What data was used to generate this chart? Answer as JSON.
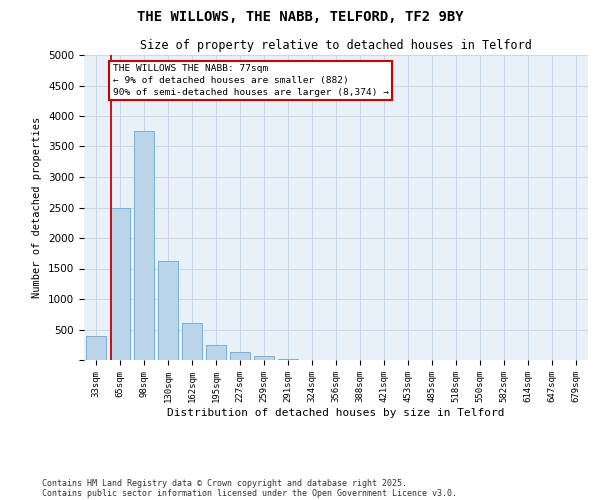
{
  "title1": "THE WILLOWS, THE NABB, TELFORD, TF2 9BY",
  "title2": "Size of property relative to detached houses in Telford",
  "xlabel": "Distribution of detached houses by size in Telford",
  "ylabel": "Number of detached properties",
  "bins": [
    "33sqm",
    "65sqm",
    "98sqm",
    "130sqm",
    "162sqm",
    "195sqm",
    "227sqm",
    "259sqm",
    "291sqm",
    "324sqm",
    "356sqm",
    "388sqm",
    "421sqm",
    "453sqm",
    "485sqm",
    "518sqm",
    "550sqm",
    "582sqm",
    "614sqm",
    "647sqm",
    "679sqm"
  ],
  "values": [
    400,
    2500,
    3750,
    1625,
    600,
    250,
    130,
    60,
    20,
    5,
    2,
    1,
    0,
    0,
    0,
    0,
    0,
    0,
    0,
    0,
    0
  ],
  "bar_color": "#bad4ea",
  "bar_edge_color": "#7bafd4",
  "grid_color": "#c8d8ea",
  "bg_color": "#e8f0f8",
  "annotation_text": "THE WILLOWS THE NABB: 77sqm\n← 9% of detached houses are smaller (882)\n90% of semi-detached houses are larger (8,374) →",
  "vline_color": "#cc0000",
  "annotation_edge_color": "#cc0000",
  "footer1": "Contains HM Land Registry data © Crown copyright and database right 2025.",
  "footer2": "Contains public sector information licensed under the Open Government Licence v3.0.",
  "ylim": [
    0,
    5000
  ],
  "yticks": [
    0,
    500,
    1000,
    1500,
    2000,
    2500,
    3000,
    3500,
    4000,
    4500,
    5000
  ],
  "vline_x": 0.62
}
